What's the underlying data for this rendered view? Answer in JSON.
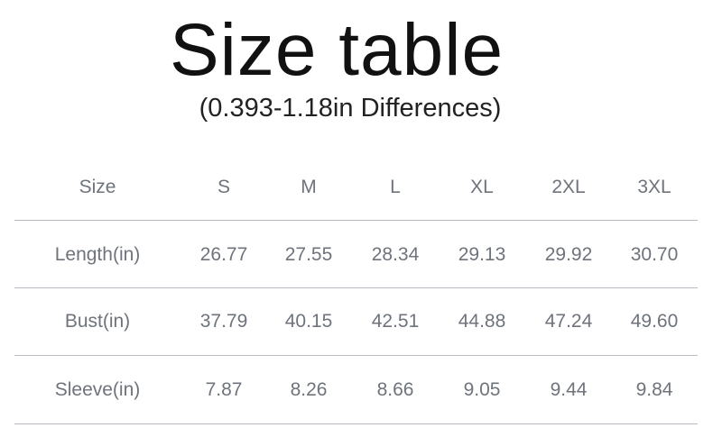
{
  "title": "Size table",
  "subtitle": "(0.393-1.18in Differences)",
  "table": {
    "header": [
      "Size",
      "S",
      "M",
      "L",
      "XL",
      "2XL",
      "3XL"
    ],
    "rows": [
      [
        "Length(in)",
        "26.77",
        "27.55",
        "28.34",
        "29.13",
        "29.92",
        "30.70"
      ],
      [
        "Bust(in)",
        "37.79",
        "40.15",
        "42.51",
        "44.88",
        "47.24",
        "49.60"
      ],
      [
        "Sleeve(in)",
        "7.87",
        "8.26",
        "8.66",
        "9.05",
        "9.44",
        "9.84"
      ]
    ]
  }
}
